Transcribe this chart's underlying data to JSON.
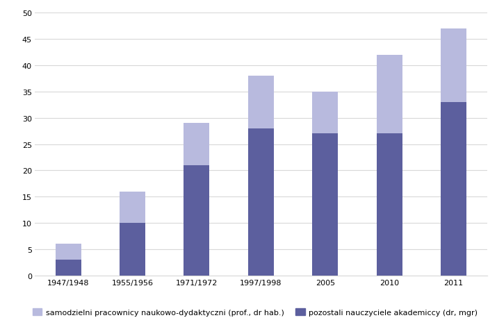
{
  "categories": [
    "1947/1948",
    "1955/1956",
    "1971/1972",
    "1997/1998",
    "2005",
    "2010",
    "2011"
  ],
  "pozostali": [
    3,
    10,
    21,
    28,
    27,
    27,
    33
  ],
  "samodzielni": [
    3,
    6,
    8,
    10,
    8,
    15,
    14
  ],
  "color_pozostali": "#5c5f9e",
  "color_samodzielni": "#b8bade",
  "ylim": [
    0,
    50
  ],
  "yticks": [
    0,
    5,
    10,
    15,
    20,
    25,
    30,
    35,
    40,
    45,
    50
  ],
  "legend_samodzielni": "samodzielni pracownicy naukowo-dydaktyczni (prof., dr hab.)",
  "legend_pozostali": "pozostali nauczyciele akademiccy (dr, mgr)",
  "bar_width": 0.4,
  "background_color": "#ffffff",
  "grid_color": "#d8d8d8",
  "tick_fontsize": 8,
  "legend_fontsize": 8
}
